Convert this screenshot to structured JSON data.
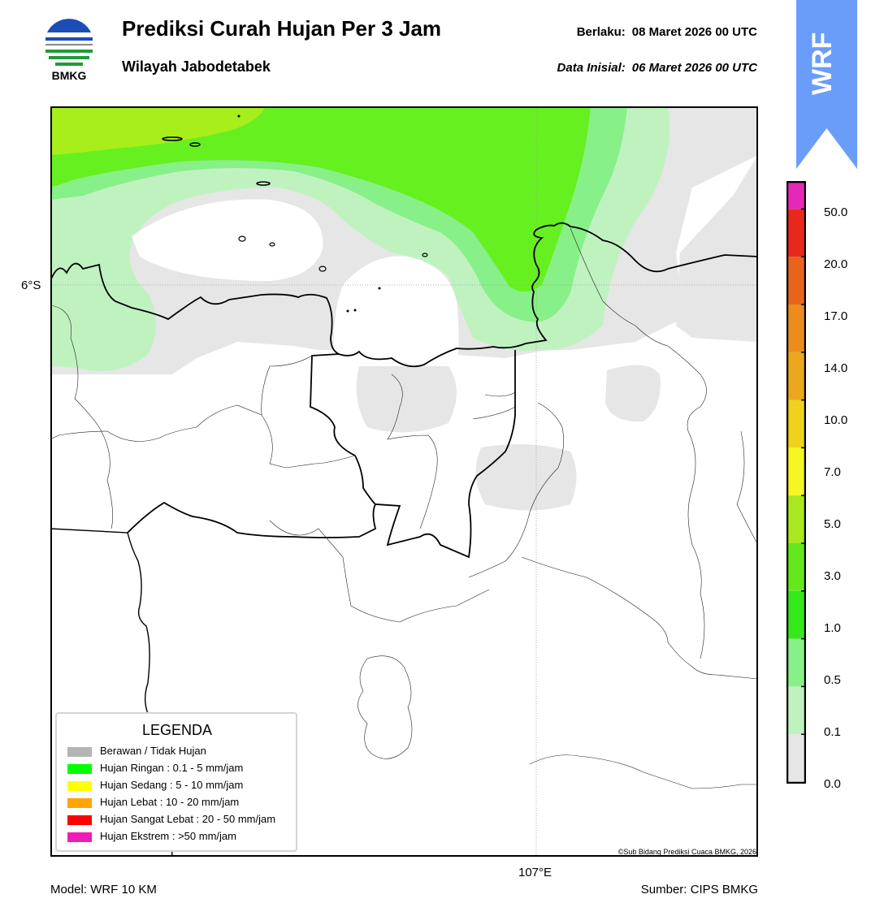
{
  "header": {
    "title": "Prediksi Curah Hujan Per 3 Jam",
    "subtitle": "Wilayah Jabodetabek",
    "valid_label": "Berlaku:",
    "valid_value": "08 Maret 2026 00 UTC",
    "init_label": "Data Inisial:",
    "init_value": "06 Maret 2026 00 UTC"
  },
  "logo": {
    "text": "BMKG",
    "icon": "bmkg-logo"
  },
  "badge": {
    "text": "WRF",
    "color": "#6a9df9"
  },
  "map": {
    "lat_label": "6°S",
    "lon_label": "107°E",
    "copyright": "©Sub Bidang Prediksi Cuaca BMKG, 2026",
    "colors": {
      "none": "#e6e6e6",
      "very_light": "#c0f2c0",
      "light": "#88f088",
      "medium": "#66f020",
      "yellow_green": "#a8ee1a"
    }
  },
  "legend": {
    "title": "LEGENDA",
    "items": [
      {
        "label": "Berawan / Tidak Hujan",
        "color": "#b4b4b4"
      },
      {
        "label": "Hujan Ringan : 0.1 - 5 mm/jam",
        "color": "#00ff00"
      },
      {
        "label": "Hujan Sedang : 5 - 10 mm/jam",
        "color": "#ffff00"
      },
      {
        "label": "Hujan Lebat : 10 - 20 mm/jam",
        "color": "#ffa500"
      },
      {
        "label": "Hujan Sangat Lebat : 20 - 50 mm/jam",
        "color": "#ff0000"
      },
      {
        "label": "Hujan Ekstrem : >50 mm/jam",
        "color": "#ee1cb8"
      }
    ]
  },
  "colorbar": {
    "ticks": [
      "50.0",
      "20.0",
      "17.0",
      "14.0",
      "10.0",
      "7.0",
      "5.0",
      "3.0",
      "1.0",
      "0.5",
      "0.1",
      "0.0"
    ],
    "segments": [
      "#e6e6e6",
      "#c0f2c0",
      "#88f088",
      "#34e81c",
      "#64e81c",
      "#a8e81c",
      "#f6f622",
      "#f0d21c",
      "#eca81c",
      "#ec8c1c",
      "#e8641c",
      "#e8281c",
      "#e628b8"
    ]
  },
  "footer": {
    "model": "Model: WRF 10 KM",
    "source": "Sumber: CIPS BMKG"
  }
}
